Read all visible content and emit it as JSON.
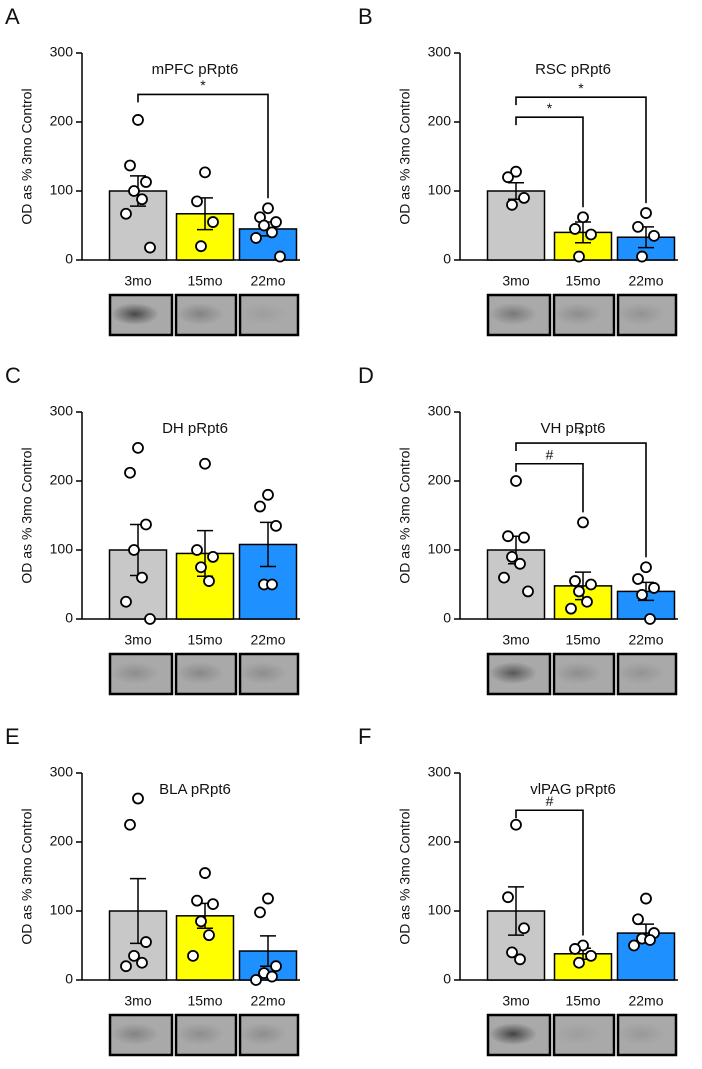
{
  "chart_data": [
    {
      "type": "bar",
      "panel": "A",
      "title": "mPFC pRpt6",
      "ylabel": "OD as % 3mo Control",
      "categories": [
        "3mo",
        "15mo",
        "22mo"
      ],
      "colors": [
        "#c8c8c8",
        "#ffff00",
        "#1e90ff"
      ],
      "values": [
        100,
        67,
        45
      ],
      "errors": [
        22,
        23,
        10
      ],
      "points": [
        [
          203,
          137,
          113,
          100,
          88,
          67,
          18
        ],
        [
          127,
          85,
          55,
          20
        ],
        [
          75,
          62,
          55,
          50,
          40,
          32,
          5
        ]
      ],
      "comparisons": [
        {
          "from": 0,
          "to": 2,
          "label": "*",
          "y": 240
        }
      ],
      "ylim": [
        0,
        300
      ],
      "yticks": [
        0,
        100,
        200,
        300
      ]
    },
    {
      "type": "bar",
      "panel": "B",
      "title": "RSC pRpt6",
      "ylabel": "OD as % 3mo Control",
      "categories": [
        "3mo",
        "15mo",
        "22mo"
      ],
      "colors": [
        "#c8c8c8",
        "#ffff00",
        "#1e90ff"
      ],
      "values": [
        100,
        40,
        33
      ],
      "errors": [
        12,
        15,
        15
      ],
      "points": [
        [
          128,
          120,
          90,
          80
        ],
        [
          62,
          45,
          37,
          5
        ],
        [
          68,
          48,
          35,
          5
        ]
      ],
      "comparisons": [
        {
          "from": 0,
          "to": 1,
          "label": "*",
          "y": 207
        },
        {
          "from": 0,
          "to": 2,
          "label": "*",
          "y": 236
        }
      ],
      "ylim": [
        0,
        300
      ],
      "yticks": [
        0,
        100,
        200,
        300
      ]
    },
    {
      "type": "bar",
      "panel": "C",
      "title": "DH pRpt6",
      "ylabel": "OD as % 3mo Control",
      "categories": [
        "3mo",
        "15mo",
        "22mo"
      ],
      "colors": [
        "#c8c8c8",
        "#ffff00",
        "#1e90ff"
      ],
      "values": [
        100,
        95,
        108
      ],
      "errors": [
        37,
        33,
        32
      ],
      "points": [
        [
          248,
          212,
          137,
          100,
          60,
          25,
          0
        ],
        [
          225,
          100,
          90,
          75,
          55
        ],
        [
          180,
          163,
          135,
          50,
          50
        ]
      ],
      "comparisons": [],
      "ylim": [
        0,
        300
      ],
      "yticks": [
        0,
        100,
        200,
        300
      ]
    },
    {
      "type": "bar",
      "panel": "D",
      "title": "VH pRpt6",
      "ylabel": "OD as % 3mo Control",
      "categories": [
        "3mo",
        "15mo",
        "22mo"
      ],
      "colors": [
        "#c8c8c8",
        "#ffff00",
        "#1e90ff"
      ],
      "values": [
        100,
        48,
        40
      ],
      "errors": [
        20,
        20,
        13
      ],
      "points": [
        [
          200,
          120,
          118,
          90,
          80,
          60,
          40
        ],
        [
          140,
          55,
          50,
          40,
          25,
          15
        ],
        [
          75,
          58,
          45,
          35,
          0
        ]
      ],
      "comparisons": [
        {
          "from": 0,
          "to": 1,
          "label": "#",
          "y": 225
        },
        {
          "from": 0,
          "to": 2,
          "label": "*",
          "y": 255
        }
      ],
      "ylim": [
        0,
        300
      ],
      "yticks": [
        0,
        100,
        200,
        300
      ]
    },
    {
      "type": "bar",
      "panel": "E",
      "title": "BLA pRpt6",
      "ylabel": "OD as % 3mo Control",
      "categories": [
        "3mo",
        "15mo",
        "22mo"
      ],
      "colors": [
        "#c8c8c8",
        "#ffff00",
        "#1e90ff"
      ],
      "values": [
        100,
        93,
        42
      ],
      "errors": [
        47,
        18,
        22
      ],
      "points": [
        [
          263,
          225,
          55,
          35,
          25,
          20
        ],
        [
          155,
          115,
          110,
          85,
          65,
          35
        ],
        [
          118,
          98,
          20,
          10,
          5,
          0
        ]
      ],
      "comparisons": [],
      "ylim": [
        0,
        300
      ],
      "yticks": [
        0,
        100,
        200,
        300
      ]
    },
    {
      "type": "bar",
      "panel": "F",
      "title": "vlPAG pRpt6",
      "ylabel": "OD as % 3mo Control",
      "categories": [
        "3mo",
        "15mo",
        "22mo"
      ],
      "colors": [
        "#c8c8c8",
        "#ffff00",
        "#1e90ff"
      ],
      "values": [
        100,
        38,
        68
      ],
      "errors": [
        35,
        8,
        13
      ],
      "points": [
        [
          225,
          120,
          75,
          40,
          30
        ],
        [
          50,
          45,
          35,
          25
        ],
        [
          118,
          88,
          68,
          60,
          58,
          50
        ]
      ],
      "comparisons": [
        {
          "from": 0,
          "to": 1,
          "label": "#",
          "y": 246
        }
      ],
      "ylim": [
        0,
        300
      ],
      "yticks": [
        0,
        100,
        200,
        300
      ]
    }
  ]
}
